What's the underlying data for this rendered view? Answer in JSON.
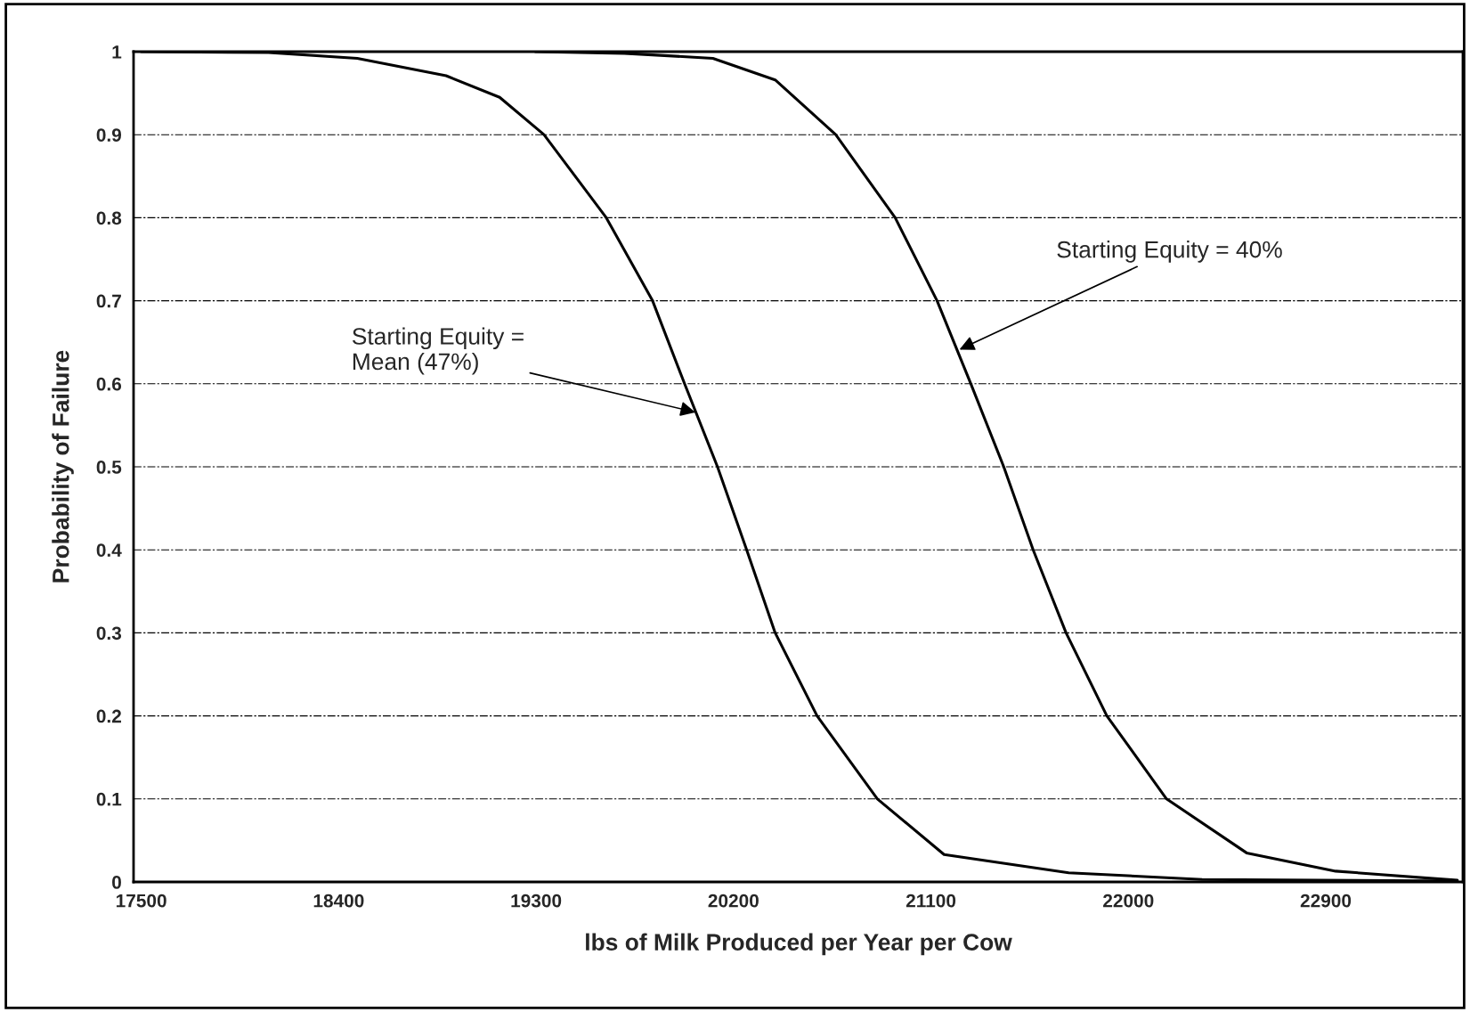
{
  "chart_data": {
    "type": "line",
    "xlabel": "lbs of Milk Produced per Year per Cow",
    "ylabel": "Probability of Failure",
    "series": [
      {
        "color": "#000000",
        "x": [
          17500,
          18080,
          18485,
          18890,
          19134,
          19336,
          19620,
          19831,
          19977,
          20127,
          20260,
          20390,
          20581,
          20856,
          21160,
          21728,
          22336,
          23500
        ],
        "values": [
          1,
          0.999,
          0.992,
          0.971,
          0.945,
          0.9,
          0.8,
          0.7,
          0.6,
          0.5,
          0.4,
          0.3,
          0.2,
          0.1,
          0.033,
          0.011,
          0.003,
          0.001
        ]
      },
      {
        "color": "#000000",
        "x": [
          19296,
          19702,
          20106,
          20390,
          20666,
          20937,
          21128,
          21282,
          21432,
          21566,
          21716,
          21902,
          22174,
          22539,
          22945,
          23500
        ],
        "values": [
          1,
          0.998,
          0.992,
          0.966,
          0.9,
          0.8,
          0.7,
          0.6,
          0.5,
          0.4,
          0.3,
          0.2,
          0.1,
          0.035,
          0.013,
          0.002
        ]
      }
    ],
    "xlim": [
      17465,
      23525
    ],
    "xticks": [
      {
        "value": 17500,
        "label": "17500"
      },
      {
        "value": 18400,
        "label": "18400"
      },
      {
        "value": 19300,
        "label": "19300"
      },
      {
        "value": 20200,
        "label": "20200"
      },
      {
        "value": 21100,
        "label": "21100"
      },
      {
        "value": 22000,
        "label": "22000"
      },
      {
        "value": 22900,
        "label": "22900"
      }
    ],
    "ylim": [
      0,
      1
    ],
    "yticks": [
      0,
      0.1,
      0.2,
      0.3,
      0.4,
      0.5,
      0.6,
      0.7,
      0.8,
      0.9,
      1
    ],
    "grid": "y",
    "legend": false,
    "marker": "none",
    "line_style": "solid",
    "annotations": [
      {
        "text": "Starting Equity =\nMean (47%)",
        "x": 20037,
        "y": 0.565
      },
      {
        "text": "Starting Equity = 40%",
        "x": 21220,
        "y": 0.64
      }
    ]
  }
}
